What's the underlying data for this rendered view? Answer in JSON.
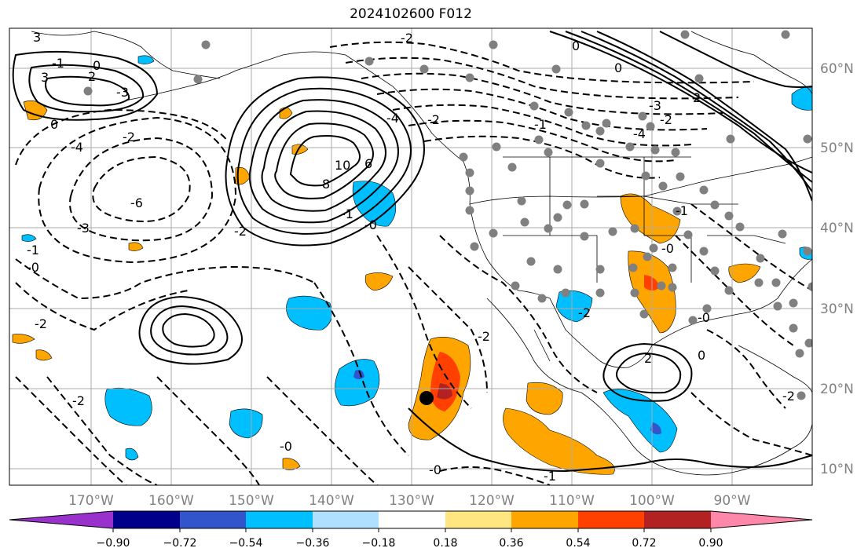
{
  "title": "2024102600 F012",
  "map": {
    "projection": "Mercator",
    "lon_ticks": [
      "170°W",
      "160°W",
      "150°W",
      "140°W",
      "130°W",
      "120°W",
      "110°W",
      "100°W",
      "90°W"
    ],
    "lat_ticks": [
      "60°N",
      "50°N",
      "40°N",
      "30°N",
      "20°N",
      "10°N"
    ],
    "gridlines": true,
    "station_marker_color": "#808080",
    "highlight_point": "black-dot",
    "contour_style": "solid positive, dashed negative",
    "contour_labels": [
      "3",
      "0",
      "-1",
      "3",
      "2",
      "-3",
      "0",
      "-4",
      "-2",
      "-6",
      "-3",
      "-1",
      "-0",
      "-2",
      "-2",
      "-0",
      "-2",
      "10",
      "8",
      "6",
      "-4",
      "-2",
      "-1",
      "-0",
      "-2",
      "-1",
      "0",
      "-4",
      "-3",
      "-2",
      "0",
      "2",
      "-1",
      "-0",
      "-2",
      "2",
      "-0",
      "0",
      "-2",
      "-1",
      "-0",
      "-2"
    ]
  },
  "colorbar": {
    "ticks": [
      "−0.90",
      "−0.72",
      "−0.54",
      "−0.36",
      "−0.18",
      "0.18",
      "0.36",
      "0.54",
      "0.72",
      "0.90"
    ],
    "colors": [
      "#9932cc",
      "#00008b",
      "#3355cc",
      "#00bfff",
      "#b0e0ff",
      "#ffffff",
      "#ffe680",
      "#ffa500",
      "#ff4000",
      "#b22222",
      "#ff88aa"
    ],
    "extend": "both"
  }
}
